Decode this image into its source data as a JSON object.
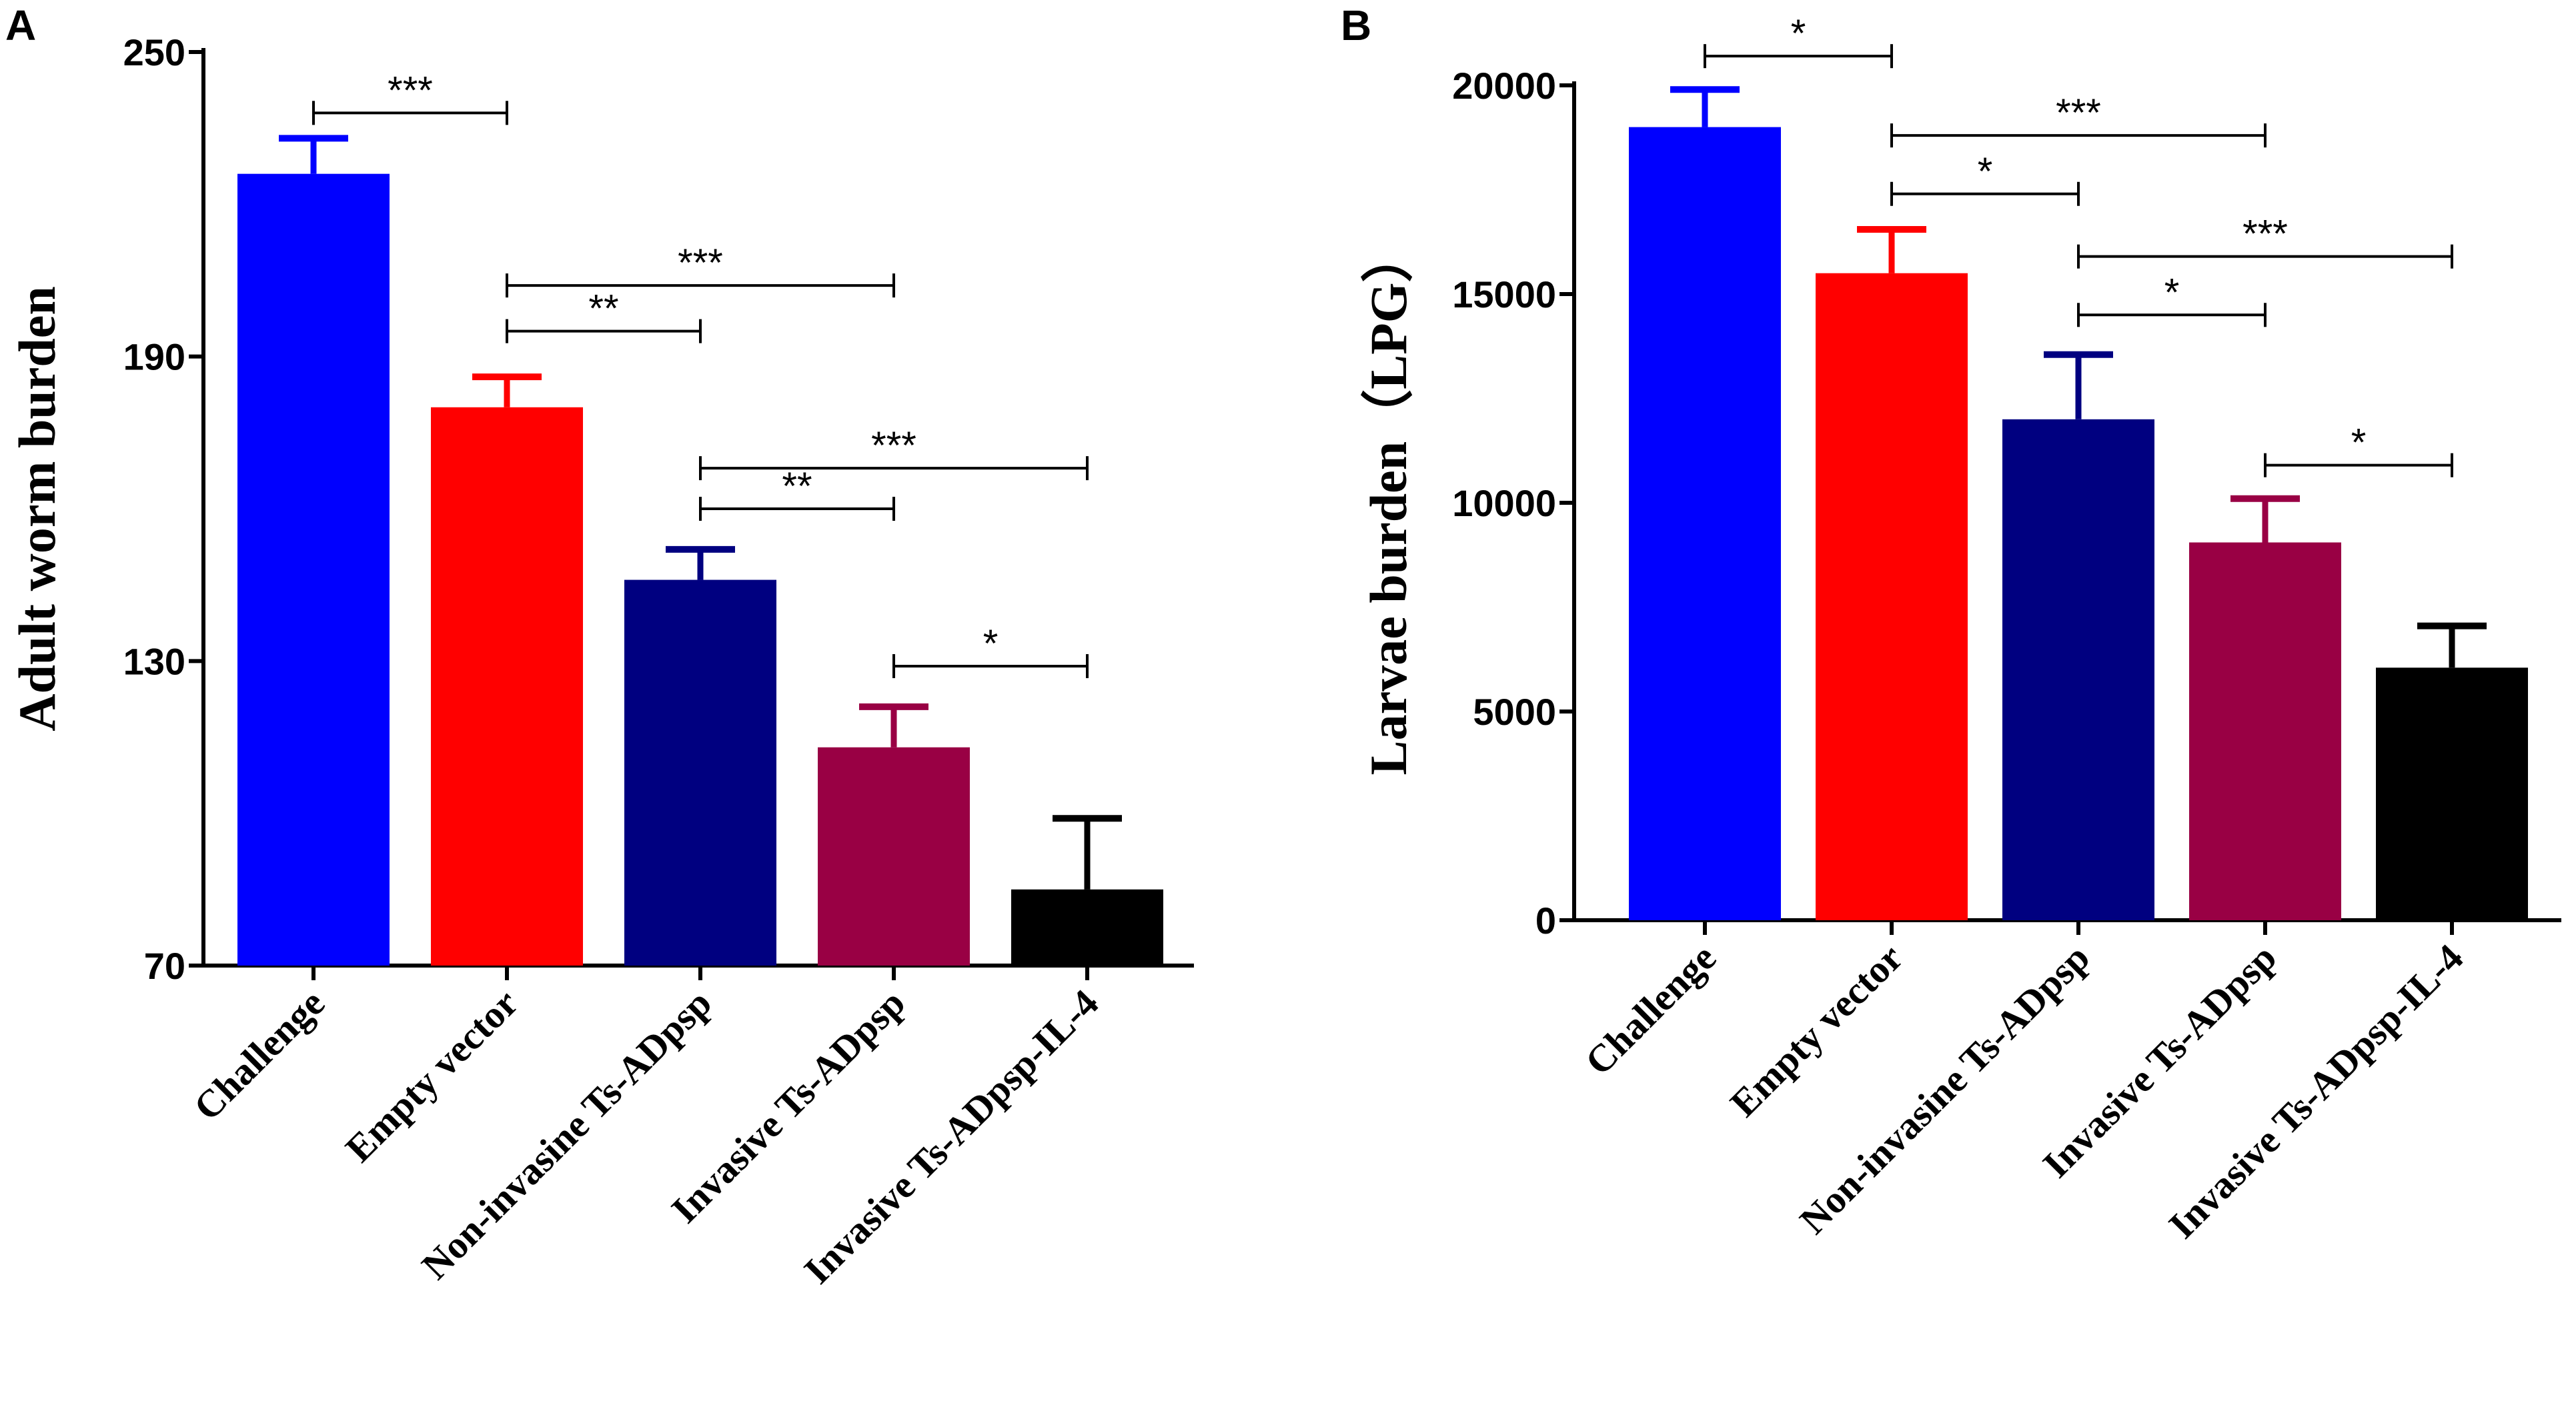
{
  "chart_data": [
    {
      "panel": "A",
      "type": "bar",
      "ylabel": "Adult worm burden",
      "xlabel": "",
      "categories": [
        "Challenge",
        "Empty vector",
        "Non-invasine Ts-ADpsp",
        "Invasive Ts-ADpsp",
        "Invasive Ts-ADpsp-IL-4"
      ],
      "values": [
        226,
        180,
        146,
        113,
        85
      ],
      "errors": [
        7,
        6,
        6,
        8,
        14
      ],
      "ylim": [
        70,
        250
      ],
      "yticks": [
        70,
        130,
        190,
        250
      ],
      "ytick_labels": [
        "70",
        "130",
        "190",
        "250"
      ],
      "comparisons": [
        {
          "from": 0,
          "to": 1,
          "label": "***",
          "y": 238
        },
        {
          "from": 1,
          "to": 3,
          "label": "***",
          "y": 204
        },
        {
          "from": 1,
          "to": 2,
          "label": "**",
          "y": 195
        },
        {
          "from": 2,
          "to": 4,
          "label": "***",
          "y": 168
        },
        {
          "from": 2,
          "to": 3,
          "label": "**",
          "y": 160
        },
        {
          "from": 3,
          "to": 4,
          "label": "*",
          "y": 129
        }
      ]
    },
    {
      "panel": "B",
      "type": "bar",
      "ylabel": "Larvae burden（LPG）",
      "xlabel": "",
      "categories": [
        "Challenge",
        "Empty vector",
        "Non-invasine Ts-ADpsp",
        "Invasive Ts-ADpsp",
        "Invasive Ts-ADpsp-IL-4"
      ],
      "values": [
        19000,
        15500,
        12000,
        9050,
        6050
      ],
      "errors": [
        900,
        1050,
        1550,
        1050,
        1000
      ],
      "ylim": [
        0,
        20000
      ],
      "yticks": [
        0,
        5000,
        10000,
        15000,
        20000
      ],
      "ytick_labels": [
        "0",
        "5000",
        "10000",
        "15000",
        "20000"
      ],
      "comparisons": [
        {
          "from": 0,
          "to": 1,
          "label": "*",
          "y": 20700
        },
        {
          "from": 1,
          "to": 3,
          "label": "***",
          "y": 18800
        },
        {
          "from": 1,
          "to": 2,
          "label": "*",
          "y": 17400
        },
        {
          "from": 2,
          "to": 4,
          "label": "***",
          "y": 15900
        },
        {
          "from": 2,
          "to": 3,
          "label": "*",
          "y": 14500
        },
        {
          "from": 3,
          "to": 4,
          "label": "*",
          "y": 10900
        }
      ]
    }
  ],
  "colors": [
    "#0000ff",
    "#ff0000",
    "#000080",
    "#990044",
    "#000000"
  ]
}
